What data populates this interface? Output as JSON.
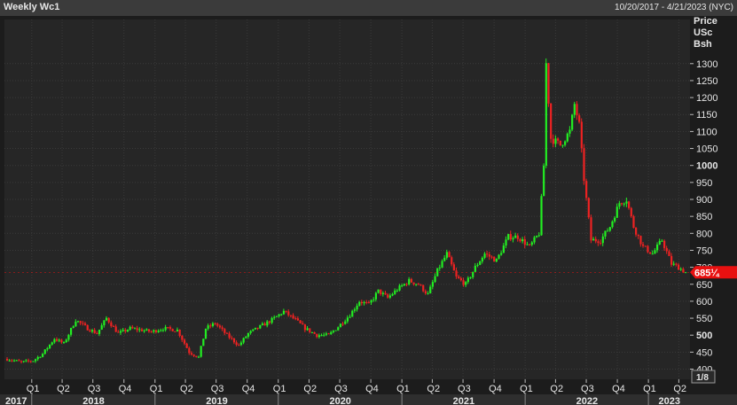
{
  "header": {
    "title": "Weekly Wc1",
    "date_range": "10/20/2017 - 4/21/2023 (NYC)"
  },
  "axis": {
    "unit_lines": [
      "Price",
      "USc",
      "Bsh"
    ],
    "y_ticks": [
      400,
      450,
      500,
      550,
      600,
      650,
      700,
      750,
      800,
      850,
      900,
      950,
      1000,
      1050,
      1100,
      1150,
      1200,
      1250,
      1300
    ],
    "bold_ticks": [
      500,
      1000
    ],
    "quarter_labels": [
      "Q1",
      "Q2",
      "Q3",
      "Q4",
      "Q1",
      "Q2",
      "Q3",
      "Q4",
      "Q1",
      "Q2",
      "Q3",
      "Q4",
      "Q1",
      "Q2",
      "Q3",
      "Q4",
      "Q1",
      "Q2",
      "Q3",
      "Q4",
      "Q1",
      "Q2"
    ],
    "year_labels": [
      "2017",
      "2018",
      "2019",
      "2020",
      "2021",
      "2022",
      "2023"
    ],
    "scale_button": "1/8"
  },
  "last_price_label": "685¼",
  "colors": {
    "background": "#1c1c1c",
    "plot_bg": "#262626",
    "grid": "#3a3a3a",
    "up": "#22ee22",
    "down": "#ee2222",
    "last_price": "#e81010"
  },
  "chart_data": {
    "type": "candlestick",
    "title": "Weekly Wc1",
    "x_range": [
      "2017-10-20",
      "2023-04-21"
    ],
    "ylim": [
      370,
      1430
    ],
    "ylabel": "Price USc Bsh",
    "last_price": 685.25,
    "grid": true,
    "anchor_closes": [
      [
        "2017-10-20",
        430
      ],
      [
        "2017-12-01",
        420
      ],
      [
        "2018-01-05",
        425
      ],
      [
        "2018-02-02",
        445
      ],
      [
        "2018-03-09",
        490
      ],
      [
        "2018-04-06",
        475
      ],
      [
        "2018-05-11",
        545
      ],
      [
        "2018-06-15",
        520
      ],
      [
        "2018-07-13",
        505
      ],
      [
        "2018-08-10",
        550
      ],
      [
        "2018-09-14",
        505
      ],
      [
        "2018-10-19",
        520
      ],
      [
        "2018-11-23",
        515
      ],
      [
        "2018-12-21",
        510
      ],
      [
        "2019-01-25",
        520
      ],
      [
        "2019-03-08",
        515
      ],
      [
        "2019-04-12",
        450
      ],
      [
        "2019-05-10",
        435
      ],
      [
        "2019-05-31",
        520
      ],
      [
        "2019-06-28",
        535
      ],
      [
        "2019-08-02",
        500
      ],
      [
        "2019-09-06",
        470
      ],
      [
        "2019-10-04",
        505
      ],
      [
        "2019-11-08",
        525
      ],
      [
        "2019-12-13",
        545
      ],
      [
        "2020-01-17",
        570
      ],
      [
        "2020-02-21",
        545
      ],
      [
        "2020-03-20",
        520
      ],
      [
        "2020-04-24",
        500
      ],
      [
        "2020-05-29",
        500
      ],
      [
        "2020-06-26",
        525
      ],
      [
        "2020-07-31",
        560
      ],
      [
        "2020-08-28",
        600
      ],
      [
        "2020-09-25",
        590
      ],
      [
        "2020-10-23",
        630
      ],
      [
        "2020-11-20",
        610
      ],
      [
        "2020-12-18",
        635
      ],
      [
        "2021-01-22",
        660
      ],
      [
        "2021-02-19",
        650
      ],
      [
        "2021-03-19",
        620
      ],
      [
        "2021-04-16",
        690
      ],
      [
        "2021-05-14",
        740
      ],
      [
        "2021-06-11",
        670
      ],
      [
        "2021-07-09",
        650
      ],
      [
        "2021-08-06",
        700
      ],
      [
        "2021-09-03",
        740
      ],
      [
        "2021-10-08",
        720
      ],
      [
        "2021-11-12",
        790
      ],
      [
        "2021-12-10",
        790
      ],
      [
        "2022-01-14",
        760
      ],
      [
        "2022-02-11",
        800
      ],
      [
        "2022-02-25",
        1000
      ],
      [
        "2022-03-04",
        1300
      ],
      [
        "2022-03-18",
        1080
      ],
      [
        "2022-04-15",
        1060
      ],
      [
        "2022-05-13",
        1100
      ],
      [
        "2022-05-27",
        1180
      ],
      [
        "2022-06-10",
        1120
      ],
      [
        "2022-06-24",
        960
      ],
      [
        "2022-07-15",
        780
      ],
      [
        "2022-08-12",
        780
      ],
      [
        "2022-09-09",
        820
      ],
      [
        "2022-10-07",
        890
      ],
      [
        "2022-10-28",
        900
      ],
      [
        "2022-11-18",
        820
      ],
      [
        "2022-12-16",
        760
      ],
      [
        "2023-01-13",
        740
      ],
      [
        "2023-02-10",
        780
      ],
      [
        "2023-03-10",
        710
      ],
      [
        "2023-03-31",
        700
      ],
      [
        "2023-04-21",
        685
      ]
    ]
  }
}
